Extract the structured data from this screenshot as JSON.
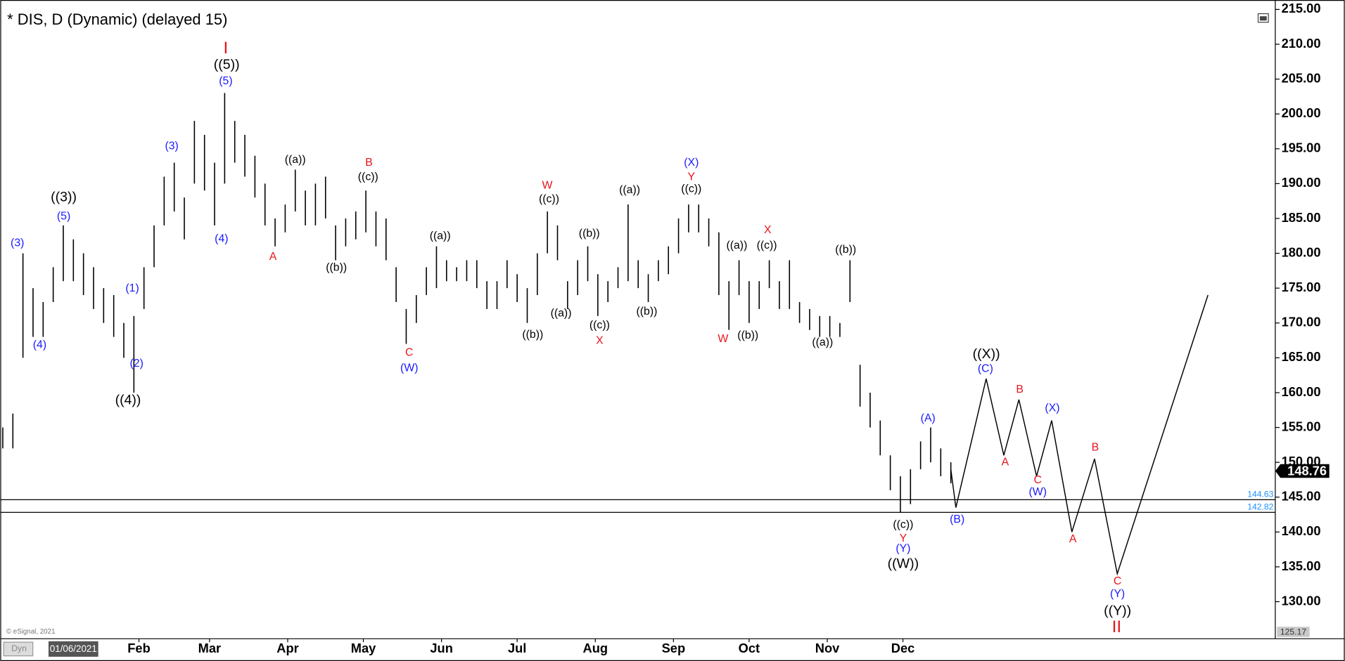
{
  "chart_data": {
    "type": "ohlc",
    "title": "* DIS, D (Dynamic) (delayed 15)",
    "copyright": "© eSignal, 2021",
    "mode_button": "Dyn",
    "cursor_date": "01/06/2021",
    "color": "#000000",
    "xlim": [
      "12/08/2020",
      "04/27/2022"
    ],
    "xticks": [
      {
        "value": "02/01/2021",
        "label": "Feb"
      },
      {
        "value": "03/01/2021",
        "label": "Mar"
      },
      {
        "value": "04/01/2021",
        "label": "Apr"
      },
      {
        "value": "05/01/2021",
        "label": "May"
      },
      {
        "value": "06/01/2021",
        "label": "Jun"
      },
      {
        "value": "07/01/2021",
        "label": "Jul"
      },
      {
        "value": "08/01/2021",
        "label": "Aug"
      },
      {
        "value": "09/01/2021",
        "label": "Sep"
      },
      {
        "value": "10/01/2021",
        "label": "Oct"
      },
      {
        "value": "11/01/2021",
        "label": "Nov"
      },
      {
        "value": "12/01/2021",
        "label": "Dec"
      }
    ],
    "ylim": [
      125.17,
      215
    ],
    "yticks": [
      {
        "value": 130,
        "label": "130.00"
      },
      {
        "value": 135,
        "label": "135.00"
      },
      {
        "value": 140,
        "label": "140.00"
      },
      {
        "value": 145,
        "label": "145.00"
      },
      {
        "value": 150,
        "label": "150.00"
      },
      {
        "value": 155,
        "label": "155.00"
      },
      {
        "value": 160,
        "label": "160.00"
      },
      {
        "value": 165,
        "label": "165.00"
      },
      {
        "value": 170,
        "label": "170.00"
      },
      {
        "value": 175,
        "label": "175.00"
      },
      {
        "value": 180,
        "label": "180.00"
      },
      {
        "value": 185,
        "label": "185.00"
      },
      {
        "value": 190,
        "label": "190.00"
      },
      {
        "value": 195,
        "label": "195.00"
      },
      {
        "value": 200,
        "label": "200.00"
      },
      {
        "value": 205,
        "label": "205.00"
      },
      {
        "value": 210,
        "label": "210.00"
      },
      {
        "value": 215,
        "label": "215.00"
      }
    ],
    "x": [
      "12/09/2020",
      "12/13/2020",
      "12/17/2020",
      "12/21/2020",
      "12/25/2020",
      "12/29/2020",
      "01/02/2021",
      "01/06/2021",
      "01/10/2021",
      "01/14/2021",
      "01/18/2021",
      "01/22/2021",
      "01/26/2021",
      "01/30/2021",
      "02/03/2021",
      "02/07/2021",
      "02/11/2021",
      "02/15/2021",
      "02/19/2021",
      "02/23/2021",
      "02/27/2021",
      "03/03/2021",
      "03/07/2021",
      "03/11/2021",
      "03/15/2021",
      "03/19/2021",
      "03/23/2021",
      "03/27/2021",
      "03/31/2021",
      "04/04/2021",
      "04/08/2021",
      "04/12/2021",
      "04/16/2021",
      "04/20/2021",
      "04/24/2021",
      "04/28/2021",
      "05/02/2021",
      "05/06/2021",
      "05/10/2021",
      "05/14/2021",
      "05/18/2021",
      "05/22/2021",
      "05/26/2021",
      "05/30/2021",
      "06/03/2021",
      "06/07/2021",
      "06/11/2021",
      "06/15/2021",
      "06/19/2021",
      "06/23/2021",
      "06/27/2021",
      "07/01/2021",
      "07/05/2021",
      "07/09/2021",
      "07/13/2021",
      "07/17/2021",
      "07/21/2021",
      "07/25/2021",
      "07/29/2021",
      "08/02/2021",
      "08/06/2021",
      "08/10/2021",
      "08/14/2021",
      "08/18/2021",
      "08/22/2021",
      "08/26/2021",
      "08/30/2021",
      "09/03/2021",
      "09/07/2021",
      "09/11/2021",
      "09/15/2021",
      "09/19/2021",
      "09/23/2021",
      "09/27/2021",
      "10/01/2021",
      "10/05/2021",
      "10/09/2021",
      "10/13/2021",
      "10/17/2021",
      "10/21/2021",
      "10/25/2021",
      "10/29/2021",
      "11/02/2021",
      "11/06/2021",
      "11/10/2021",
      "11/14/2021",
      "11/18/2021",
      "11/22/2021",
      "11/26/2021",
      "11/30/2021",
      "12/04/2021",
      "12/08/2021",
      "12/12/2021",
      "12/16/2021",
      "12/20/2021"
    ],
    "high": [
      155,
      157,
      180,
      175,
      173,
      178,
      184,
      182,
      180,
      178,
      175,
      174,
      170,
      171,
      178,
      184,
      191,
      193,
      188,
      199,
      197,
      193,
      203,
      199,
      197,
      194,
      190,
      185,
      187,
      192,
      189,
      190,
      191,
      184,
      185,
      186,
      189,
      186,
      185,
      178,
      172,
      174,
      178,
      181,
      179,
      178,
      179,
      179,
      176,
      176,
      179,
      177,
      175,
      180,
      186,
      184,
      176,
      179,
      181,
      177,
      176,
      178,
      187,
      179,
      177,
      179,
      181,
      185,
      187,
      187,
      185,
      183,
      176,
      179,
      176,
      176,
      179,
      176,
      179,
      173,
      172,
      171,
      171,
      170,
      179,
      164,
      160,
      156,
      151,
      148,
      149,
      153,
      155,
      152,
      150
    ],
    "low": [
      152,
      152,
      165,
      168,
      168,
      173,
      176,
      176,
      174,
      172,
      170,
      168,
      165,
      160,
      172,
      178,
      184,
      186,
      182,
      190,
      189,
      184,
      190,
      193,
      191,
      188,
      184,
      181,
      183,
      186,
      184,
      184,
      185,
      179,
      181,
      182,
      183,
      181,
      179,
      173,
      167,
      170,
      174,
      175,
      176,
      176,
      176,
      175,
      172,
      172,
      175,
      173,
      170,
      174,
      180,
      179,
      172,
      174,
      176,
      171,
      173,
      175,
      176,
      175,
      173,
      176,
      177,
      180,
      183,
      183,
      181,
      174,
      169,
      174,
      170,
      172,
      175,
      172,
      172,
      170,
      169,
      168,
      168,
      168,
      173,
      158,
      155,
      151,
      146,
      142.8,
      144,
      149,
      150,
      148,
      147
    ],
    "projection": {
      "x": [
        "12/20/2021",
        "12/22/2021",
        "01/03/2022",
        "01/10/2022",
        "01/16/2022",
        "01/23/2022",
        "01/29/2022",
        "02/06/2022",
        "02/15/2022",
        "02/24/2022",
        "04/01/2022"
      ],
      "y": [
        149,
        143.5,
        162,
        151,
        159,
        148,
        156,
        140,
        150.5,
        134,
        174
      ]
    },
    "levels": [
      144.63,
      142.82
    ],
    "level_color": "#1e90ff",
    "last_price": 148.76,
    "wave_labels": [
      {
        "text": "((3))",
        "color": "#000000"
      },
      {
        "text": "(5)",
        "color": "#1a1aff"
      },
      {
        "text": "(3)",
        "color": "#1a1aff"
      },
      {
        "text": "(4)",
        "color": "#1a1aff"
      },
      {
        "text": "(1)",
        "color": "#1a1aff"
      },
      {
        "text": "(2)",
        "color": "#1a1aff"
      },
      {
        "text": "((4))",
        "color": "#000000"
      },
      {
        "text": "(3)",
        "color": "#1a1aff"
      },
      {
        "text": "I",
        "color": "#e8141b"
      },
      {
        "text": "((5))",
        "color": "#000000"
      },
      {
        "text": "(5)",
        "color": "#1a1aff"
      },
      {
        "text": "(4)",
        "color": "#1a1aff"
      },
      {
        "text": "A",
        "color": "#e8141b"
      },
      {
        "text": "((a))",
        "color": "#000000"
      },
      {
        "text": "B",
        "color": "#e8141b"
      },
      {
        "text": "((c))",
        "color": "#000000"
      },
      {
        "text": "((b))",
        "color": "#000000"
      },
      {
        "text": "C",
        "color": "#e8141b"
      },
      {
        "text": "(W)",
        "color": "#1a1aff"
      },
      {
        "text": "((a))",
        "color": "#000000"
      },
      {
        "text": "((b))",
        "color": "#000000"
      },
      {
        "text": "W",
        "color": "#e8141b"
      },
      {
        "text": "((c))",
        "color": "#000000"
      },
      {
        "text": "((a))",
        "color": "#000000"
      },
      {
        "text": "((b))",
        "color": "#000000"
      },
      {
        "text": "((c))",
        "color": "#000000"
      },
      {
        "text": "X",
        "color": "#e8141b"
      },
      {
        "text": "((a))",
        "color": "#000000"
      },
      {
        "text": "((b))",
        "color": "#000000"
      },
      {
        "text": "(X)",
        "color": "#1a1aff"
      },
      {
        "text": "Y",
        "color": "#e8141b"
      },
      {
        "text": "((c))",
        "color": "#000000"
      },
      {
        "text": "((a))",
        "color": "#000000"
      },
      {
        "text": "X",
        "color": "#e8141b"
      },
      {
        "text": "((c))",
        "color": "#000000"
      },
      {
        "text": "W",
        "color": "#e8141b"
      },
      {
        "text": "((b))",
        "color": "#000000"
      },
      {
        "text": "((b))",
        "color": "#000000"
      },
      {
        "text": "((a))",
        "color": "#000000"
      },
      {
        "text": "((X))",
        "color": "#000000"
      },
      {
        "text": "(C)",
        "color": "#1a1aff"
      },
      {
        "text": "B",
        "color": "#e8141b"
      },
      {
        "text": "A",
        "color": "#e8141b"
      },
      {
        "text": "(X)",
        "color": "#1a1aff"
      },
      {
        "text": "C",
        "color": "#e8141b"
      },
      {
        "text": "(W)",
        "color": "#1a1aff"
      },
      {
        "text": "(A)",
        "color": "#1a1aff"
      },
      {
        "text": "(B)",
        "color": "#1a1aff"
      },
      {
        "text": "((c))",
        "color": "#000000"
      },
      {
        "text": "Y",
        "color": "#e8141b"
      },
      {
        "text": "(Y)",
        "color": "#1a1aff"
      },
      {
        "text": "((W))",
        "color": "#000000"
      },
      {
        "text": "B",
        "color": "#e8141b"
      },
      {
        "text": "A",
        "color": "#e8141b"
      },
      {
        "text": "C",
        "color": "#e8141b"
      },
      {
        "text": "(Y)",
        "color": "#1a1aff"
      },
      {
        "text": "((Y))",
        "color": "#000000"
      },
      {
        "text": "II",
        "color": "#e8141b"
      }
    ]
  }
}
